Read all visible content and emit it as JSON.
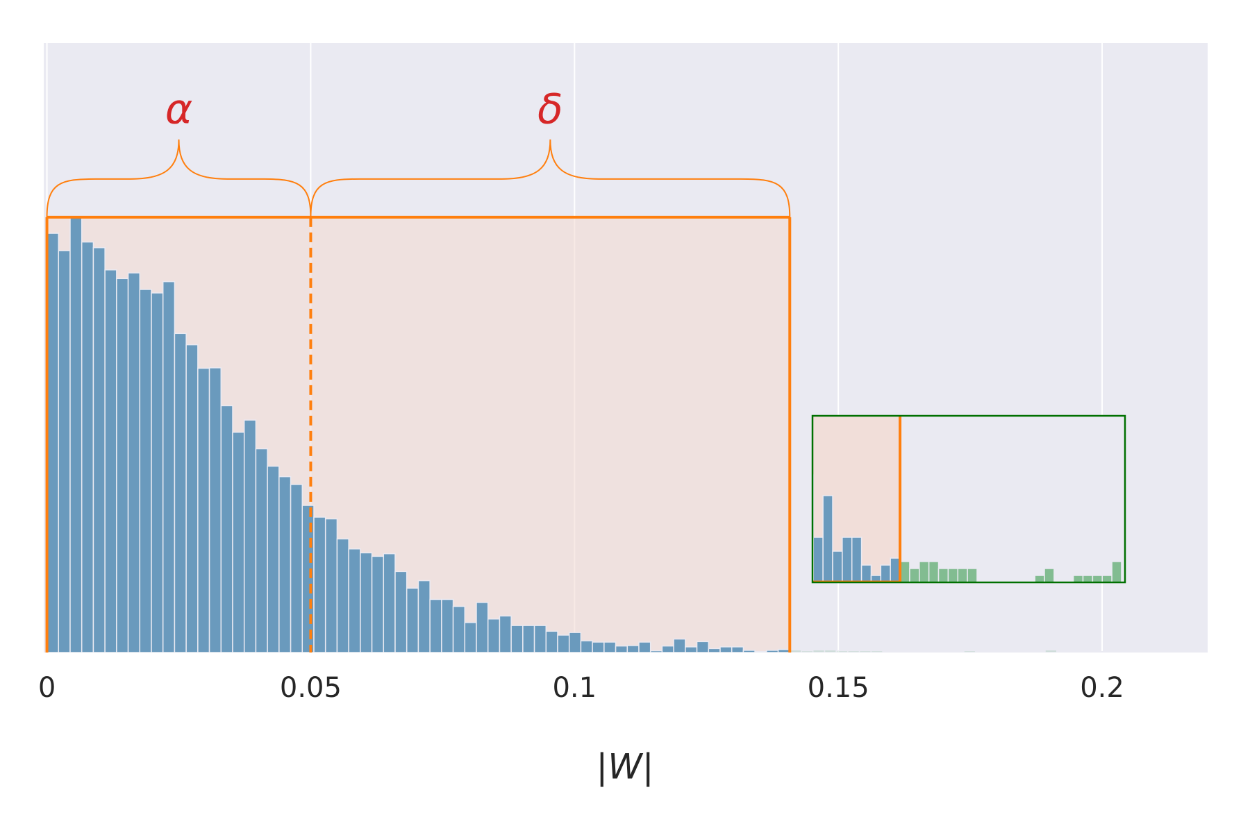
{
  "chart_data": {
    "type": "histogram",
    "xlabel": "|W|",
    "bins": [
      0,
      0.0022,
      0.0044,
      0.0066,
      0.0088,
      0.011,
      0.0132,
      0.0154,
      0.0176,
      0.0198,
      0.022,
      0.0242,
      0.0264,
      0.0286,
      0.0308,
      0.033,
      0.0352,
      0.0374,
      0.0396,
      0.0418,
      0.044,
      0.0462,
      0.0484,
      0.0506,
      0.0528,
      0.055,
      0.0572,
      0.0594,
      0.0616,
      0.0638,
      0.066,
      0.0682,
      0.0704,
      0.0726,
      0.0748,
      0.077,
      0.0792,
      0.0814,
      0.0836,
      0.0858,
      0.088,
      0.0902,
      0.0924,
      0.0946,
      0.0968,
      0.099,
      0.1012,
      0.1034,
      0.1056,
      0.1078,
      0.11,
      0.1122,
      0.1144,
      0.1166,
      0.1188,
      0.121,
      0.1232,
      0.1254,
      0.1276,
      0.1298,
      0.132,
      0.1342,
      0.1364,
      0.1386,
      0.1408,
      0.143,
      0.1452,
      0.1474,
      0.1496,
      0.1518,
      0.154,
      0.1562,
      0.1584,
      0.1606,
      0.1628,
      0.165,
      0.1672,
      0.1694,
      0.1716,
      0.1738,
      0.176,
      0.1782,
      0.1804,
      0.1826,
      0.1848,
      0.187,
      0.1892,
      0.1914,
      0.1936,
      0.1958,
      0.198,
      0.2002,
      0.2024,
      0.2046,
      0.2068,
      0.209,
      0.2112,
      0.2134,
      0.2156,
      0.2178,
      0.22
    ],
    "values": [
      963,
      923,
      1000,
      943,
      930,
      879,
      859,
      872,
      834,
      826,
      852,
      733,
      707,
      653,
      654,
      567,
      506,
      534,
      468,
      428,
      404,
      386,
      338,
      311,
      307,
      261,
      238,
      229,
      221,
      227,
      186,
      148,
      165,
      122,
      122,
      106,
      69,
      115,
      77,
      84,
      62,
      62,
      62,
      49,
      40,
      46,
      27,
      24,
      24,
      15,
      16,
      24,
      4,
      15,
      31,
      13,
      25,
      9,
      13,
      13,
      5,
      2,
      5,
      7,
      6,
      4,
      6,
      6,
      4,
      4,
      4,
      4,
      0,
      0,
      0,
      0,
      0,
      0,
      2,
      4,
      0,
      0,
      2,
      2,
      2,
      2,
      6,
      0,
      2,
      0,
      2,
      0,
      0,
      0,
      0,
      0,
      0,
      2,
      0,
      0
    ],
    "color": "#6a9abd",
    "tail_color": "#55a868",
    "xlim": [
      -0.0006,
      0.22
    ],
    "ylim": [
      0,
      1400
    ],
    "xticks": [
      0,
      0.05,
      0.1,
      0.15,
      0.2
    ],
    "grid": true,
    "regions": [
      {
        "label": "α",
        "range": [
          0,
          0.05
        ]
      },
      {
        "label": "δ",
        "range": [
          0.05,
          0.1408
        ]
      }
    ],
    "region_color": "#ff7f0e",
    "label_color": "#d62728",
    "inset": {
      "xlim": [
        0.1208,
        0.1922
      ],
      "ylim": [
        0,
        48
      ],
      "color": "#007000"
    }
  }
}
